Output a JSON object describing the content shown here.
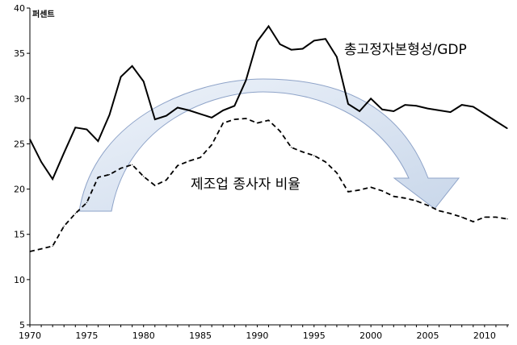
{
  "chart_data": {
    "type": "line",
    "unit_label": "퍼센트",
    "xlim": [
      1970,
      2012
    ],
    "ylim": [
      5,
      40
    ],
    "x_ticks": [
      1970,
      1975,
      1980,
      1985,
      1990,
      1995,
      2000,
      2005,
      2010
    ],
    "y_ticks": [
      5,
      10,
      15,
      20,
      25,
      30,
      35,
      40
    ],
    "x": [
      1970,
      1971,
      1972,
      1973,
      1974,
      1975,
      1976,
      1977,
      1978,
      1979,
      1980,
      1981,
      1982,
      1983,
      1984,
      1985,
      1986,
      1987,
      1988,
      1989,
      1990,
      1991,
      1992,
      1993,
      1994,
      1995,
      1996,
      1997,
      1998,
      1999,
      2000,
      2001,
      2002,
      2003,
      2004,
      2005,
      2006,
      2007,
      2008,
      2009,
      2010,
      2011,
      2012
    ],
    "series": [
      {
        "name": "총고정자본형성/GDP",
        "style": "solid",
        "values": [
          25.5,
          23.0,
          21.1,
          24.0,
          26.8,
          26.6,
          25.3,
          28.2,
          32.4,
          33.6,
          31.9,
          27.7,
          28.1,
          29.0,
          28.7,
          28.3,
          27.9,
          28.7,
          29.2,
          32.0,
          36.3,
          38.0,
          36.0,
          35.4,
          35.5,
          36.4,
          36.6,
          34.6,
          29.4,
          28.6,
          30.0,
          28.8,
          28.6,
          29.3,
          29.2,
          28.9,
          28.7,
          28.5,
          29.3,
          29.1,
          28.3,
          27.5,
          26.7
        ]
      },
      {
        "name": "제조업 종사자 비율",
        "style": "dashed",
        "values": [
          13.1,
          13.4,
          13.7,
          15.9,
          17.3,
          18.5,
          21.3,
          21.6,
          22.3,
          22.7,
          21.4,
          20.4,
          21.0,
          22.6,
          23.1,
          23.5,
          24.9,
          27.3,
          27.7,
          27.8,
          27.3,
          27.6,
          26.4,
          24.6,
          24.1,
          23.7,
          23.0,
          21.8,
          19.7,
          19.9,
          20.2,
          19.8,
          19.2,
          19.0,
          18.7,
          18.2,
          17.6,
          17.3,
          16.9,
          16.4,
          16.9,
          16.9,
          16.7
        ]
      }
    ],
    "legend": "inline-labels",
    "grid": false
  },
  "labels": {
    "gfcf": "총고정자본형성/GDP",
    "mfg": "제조업 종사자 비율"
  },
  "colors": {
    "line": "#000000",
    "arrow_fill": "#dce6f2",
    "arrow_stroke": "#8ea3c8"
  }
}
